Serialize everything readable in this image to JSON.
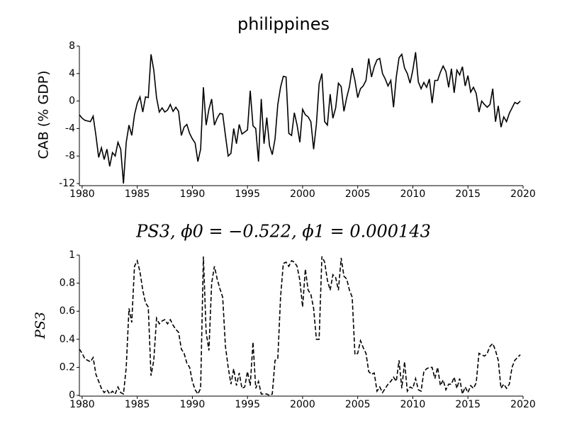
{
  "chart_data": [
    {
      "type": "line",
      "title": "philippines",
      "y_label": "CAB (% GDP)",
      "xlim": [
        1979.75,
        2020
      ],
      "xticks": [
        1980,
        1985,
        1990,
        1995,
        2000,
        2005,
        2010,
        2015,
        2020
      ],
      "ylim": [
        -12,
        8
      ],
      "yticks": [
        -12,
        -8,
        -4,
        0,
        4,
        8
      ],
      "line_style": "solid",
      "color": "#000000",
      "x": [
        1979.75,
        1980,
        1980.25,
        1980.5,
        1980.75,
        1981,
        1981.25,
        1981.5,
        1981.75,
        1982,
        1982.25,
        1982.5,
        1982.75,
        1983,
        1983.25,
        1983.5,
        1983.75,
        1984,
        1984.25,
        1984.5,
        1984.75,
        1985,
        1985.25,
        1985.5,
        1985.75,
        1986,
        1986.25,
        1986.5,
        1986.75,
        1987,
        1987.25,
        1987.5,
        1987.75,
        1988,
        1988.25,
        1988.5,
        1988.75,
        1989,
        1989.25,
        1989.5,
        1989.75,
        1990,
        1990.25,
        1990.5,
        1990.75,
        1991,
        1991.25,
        1991.5,
        1991.75,
        1992,
        1992.25,
        1992.5,
        1992.75,
        1993,
        1993.25,
        1993.5,
        1993.75,
        1994,
        1994.25,
        1994.5,
        1994.75,
        1995,
        1995.25,
        1995.5,
        1995.75,
        1996,
        1996.25,
        1996.5,
        1996.75,
        1997,
        1997.25,
        1997.5,
        1997.75,
        1998,
        1998.25,
        1998.5,
        1998.75,
        1999,
        1999.25,
        1999.5,
        1999.75,
        2000,
        2000.25,
        2000.5,
        2000.75,
        2001,
        2001.25,
        2001.5,
        2001.75,
        2002,
        2002.25,
        2002.5,
        2002.75,
        2003,
        2003.25,
        2003.5,
        2003.75,
        2004,
        2004.25,
        2004.5,
        2004.75,
        2005,
        2005.25,
        2005.5,
        2005.75,
        2006,
        2006.25,
        2006.5,
        2006.75,
        2007,
        2007.25,
        2007.5,
        2007.75,
        2008,
        2008.25,
        2008.5,
        2008.75,
        2009,
        2009.25,
        2009.5,
        2009.75,
        2010,
        2010.25,
        2010.5,
        2010.75,
        2011,
        2011.25,
        2011.5,
        2011.75,
        2012,
        2012.25,
        2012.5,
        2012.75,
        2013,
        2013.25,
        2013.5,
        2013.75,
        2014,
        2014.25,
        2014.5,
        2014.75,
        2015,
        2015.25,
        2015.5,
        2015.75,
        2016,
        2016.25,
        2016.5,
        2016.75,
        2017,
        2017.25,
        2017.5,
        2017.75,
        2018,
        2018.25,
        2018.5,
        2018.75,
        2019,
        2019.25,
        2019.5,
        2019.75
      ],
      "values": [
        -2,
        -2.5,
        -2.8,
        -2.9,
        -3,
        -2.2,
        -5,
        -8.2,
        -6.8,
        -8.5,
        -7,
        -9.5,
        -7.5,
        -8,
        -6,
        -7,
        -12,
        -6,
        -3.5,
        -5,
        -2,
        -0.3,
        0.6,
        -1.6,
        0.6,
        0.5,
        6.8,
        4.5,
        0.5,
        -1.6,
        -1,
        -1.6,
        -1.3,
        -0.5,
        -1.5,
        -0.9,
        -1.5,
        -5,
        -3.8,
        -3.4,
        -4.7,
        -5.5,
        -6.1,
        -8.8,
        -7,
        2,
        -3.5,
        -1.2,
        0.3,
        -3.5,
        -2.5,
        -1.8,
        -1.9,
        -5,
        -8,
        -7.6,
        -4,
        -6.2,
        -3.4,
        -4.8,
        -4.5,
        -4.2,
        1.5,
        -3.6,
        -4,
        -8.8,
        0.3,
        -6.2,
        -2.4,
        -6.5,
        -7.8,
        -5.5,
        -0.5,
        2,
        3.6,
        3.5,
        -4.7,
        -5,
        -1.7,
        -3.5,
        -6,
        -1.2,
        -2,
        -2.3,
        -3,
        -7,
        -3.4,
        2.5,
        4,
        -3,
        -3.5,
        1,
        -2.5,
        -1,
        2.6,
        2.1,
        -1.5,
        0.5,
        2.1,
        4.8,
        3,
        0.5,
        1.8,
        2.2,
        3,
        6.2,
        3.5,
        5,
        6,
        6.2,
        4,
        3.2,
        2.2,
        3,
        -0.9,
        3.5,
        6.3,
        6.8,
        4.8,
        4,
        2.6,
        4.5,
        7.1,
        2.8,
        1.8,
        2.7,
        2,
        3.2,
        -0.3,
        3,
        3,
        4.2,
        5.1,
        4.3,
        2,
        4.7,
        1.2,
        4.5,
        3.8,
        5,
        2.2,
        3.7,
        1.3,
        2,
        1.1,
        -1.6,
        0,
        -0.5,
        -0.9,
        -0.5,
        1.8,
        -3,
        -0.7,
        -3.8,
        -2.3,
        -3,
        -1.8,
        -1,
        -0.2,
        -0.4,
        0
      ]
    },
    {
      "type": "line",
      "title": "PS3, ϕ0 = −0.522, ϕ1 = 0.000143",
      "y_label": "PS3",
      "xlim": [
        1979.75,
        2020
      ],
      "xticks": [
        1980,
        1985,
        1990,
        1995,
        2000,
        2005,
        2010,
        2015,
        2020
      ],
      "ylim": [
        0,
        1
      ],
      "yticks": [
        0,
        0.2,
        0.4,
        0.6,
        0.8,
        1
      ],
      "line_style": "dashed",
      "color": "#000000",
      "x": [
        1979.75,
        1980,
        1980.25,
        1980.5,
        1980.75,
        1981,
        1981.25,
        1981.5,
        1981.75,
        1982,
        1982.25,
        1982.5,
        1982.75,
        1983,
        1983.25,
        1983.5,
        1983.75,
        1984,
        1984.25,
        1984.5,
        1984.75,
        1985,
        1985.25,
        1985.5,
        1985.75,
        1986,
        1986.25,
        1986.5,
        1986.75,
        1987,
        1987.25,
        1987.5,
        1987.75,
        1988,
        1988.25,
        1988.5,
        1988.75,
        1989,
        1989.25,
        1989.5,
        1989.75,
        1990,
        1990.25,
        1990.5,
        1990.75,
        1991,
        1991.25,
        1991.5,
        1991.75,
        1992,
        1992.25,
        1992.5,
        1992.75,
        1993,
        1993.25,
        1993.5,
        1993.75,
        1994,
        1994.25,
        1994.5,
        1994.75,
        1995,
        1995.25,
        1995.5,
        1995.75,
        1996,
        1996.25,
        1996.5,
        1996.75,
        1997,
        1997.25,
        1997.5,
        1997.75,
        1998,
        1998.25,
        1998.5,
        1998.75,
        1999,
        1999.25,
        1999.5,
        1999.75,
        2000,
        2000.25,
        2000.5,
        2000.75,
        2001,
        2001.25,
        2001.5,
        2001.75,
        2002,
        2002.25,
        2002.5,
        2002.75,
        2003,
        2003.25,
        2003.5,
        2003.75,
        2004,
        2004.25,
        2004.5,
        2004.75,
        2005,
        2005.25,
        2005.5,
        2005.75,
        2006,
        2006.25,
        2006.5,
        2006.75,
        2007,
        2007.25,
        2007.5,
        2007.75,
        2008,
        2008.25,
        2008.5,
        2008.75,
        2009,
        2009.25,
        2009.5,
        2009.75,
        2010,
        2010.25,
        2010.5,
        2010.75,
        2011,
        2011.25,
        2011.5,
        2011.75,
        2012,
        2012.25,
        2012.5,
        2012.75,
        2013,
        2013.25,
        2013.5,
        2013.75,
        2014,
        2014.25,
        2014.5,
        2014.75,
        2015,
        2015.25,
        2015.5,
        2015.75,
        2016,
        2016.25,
        2016.5,
        2016.75,
        2017,
        2017.25,
        2017.5,
        2017.75,
        2018,
        2018.25,
        2018.5,
        2018.75,
        2019,
        2019.25,
        2019.5,
        2019.75
      ],
      "values": [
        0.33,
        0.3,
        0.26,
        0.25,
        0.24,
        0.27,
        0.15,
        0.1,
        0.05,
        0.02,
        0.04,
        0.01,
        0.03,
        0.01,
        0.06,
        0.02,
        0.01,
        0.2,
        0.62,
        0.52,
        0.92,
        0.96,
        0.88,
        0.75,
        0.66,
        0.63,
        0.14,
        0.25,
        0.55,
        0.51,
        0.53,
        0.54,
        0.51,
        0.54,
        0.5,
        0.47,
        0.45,
        0.33,
        0.3,
        0.23,
        0.2,
        0.1,
        0.04,
        0.01,
        0.05,
        0.99,
        0.45,
        0.32,
        0.8,
        0.92,
        0.83,
        0.76,
        0.7,
        0.35,
        0.2,
        0.08,
        0.19,
        0.07,
        0.16,
        0.05,
        0.06,
        0.17,
        0.07,
        0.38,
        0.05,
        0.1,
        0.01,
        0.01,
        0.01,
        0,
        0.01,
        0.25,
        0.26,
        0.7,
        0.94,
        0.95,
        0.92,
        0.96,
        0.95,
        0.92,
        0.82,
        0.63,
        0.9,
        0.75,
        0.72,
        0.62,
        0.4,
        0.4,
        0.99,
        0.95,
        0.82,
        0.75,
        0.86,
        0.84,
        0.75,
        0.98,
        0.85,
        0.83,
        0.75,
        0.7,
        0.29,
        0.3,
        0.39,
        0.34,
        0.3,
        0.17,
        0.15,
        0.16,
        0.03,
        0.06,
        0.02,
        0.05,
        0.08,
        0.1,
        0.13,
        0.1,
        0.25,
        0.05,
        0.24,
        0.03,
        0.06,
        0.05,
        0.12,
        0.04,
        0.03,
        0.17,
        0.19,
        0.2,
        0.2,
        0.12,
        0.2,
        0.07,
        0.11,
        0.04,
        0.08,
        0.08,
        0.13,
        0.05,
        0.12,
        0.01,
        0.06,
        0.02,
        0.07,
        0.05,
        0.09,
        0.3,
        0.29,
        0.28,
        0.3,
        0.35,
        0.37,
        0.32,
        0.25,
        0.05,
        0.08,
        0.05,
        0.08,
        0.2,
        0.25,
        0.27,
        0.29
      ]
    }
  ]
}
